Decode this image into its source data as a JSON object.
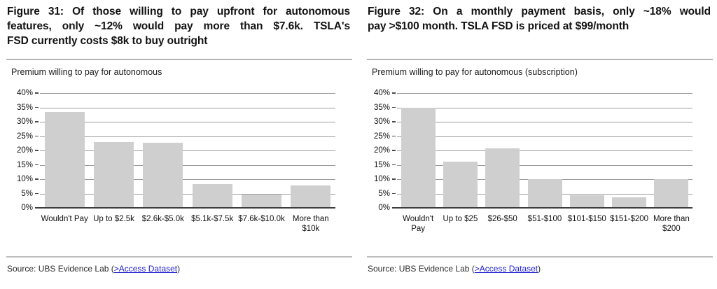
{
  "colors": {
    "bar_fill": "#cfcfcf",
    "axis_line": "#3d3d3d",
    "gridline": "#9b9b9b",
    "link_blue": "#2222cc",
    "divider_gray": "#b3b3b3",
    "title_text": "#121212"
  },
  "figures": [
    {
      "title_lines": [
        "Figure 31: Of those willing to pay upfront for autonomous",
        "features, only ~12% would pay more than $7.6k. TSLA's",
        "FSD currently costs $8k to buy outright"
      ],
      "source": {
        "prefix": "Source: UBS Evidence Lab (",
        "link_text": ">Access Dataset",
        "suffix": ")"
      }
    },
    {
      "title_lines": [
        "Figure 32: On a monthly payment basis, only ~18% would",
        "pay >$100 month. TSLA FSD is priced at $99/month"
      ],
      "source": {
        "prefix": "Source: UBS Evidence Lab (",
        "link_text": ">Access Dataset",
        "suffix": ")"
      }
    }
  ],
  "chart_data": [
    {
      "type": "bar",
      "title": "Premium willing to pay for autonomous",
      "categories": [
        "Wouldn't Pay",
        "Up to $2.5k",
        "$2.6k-$5.0k",
        "$5.1k-$7.5k",
        "$7.6k-$10.0k",
        "More than\n$10k"
      ],
      "values": [
        33.5,
        23,
        22.8,
        8.2,
        4.7,
        7.7
      ],
      "xlabel": "",
      "ylabel": "",
      "ylim": [
        0,
        40
      ],
      "ytick_step": 5,
      "ytick_format": "percent",
      "grid": true,
      "legend": "none",
      "bar_color": "#cfcfcf"
    },
    {
      "type": "bar",
      "title": "Premium willing to pay for autonomous (subscription)",
      "categories": [
        "Wouldn't\nPay",
        "Up to $25",
        "$26-$50",
        "$51-$100",
        "$101-$150",
        "$151-$200",
        "More than\n$200"
      ],
      "values": [
        35,
        16.2,
        20.7,
        10,
        4.3,
        3.7,
        10
      ],
      "xlabel": "",
      "ylabel": "",
      "ylim": [
        0,
        40
      ],
      "ytick_step": 5,
      "ytick_format": "percent",
      "grid": true,
      "legend": "none",
      "bar_color": "#cfcfcf"
    }
  ]
}
